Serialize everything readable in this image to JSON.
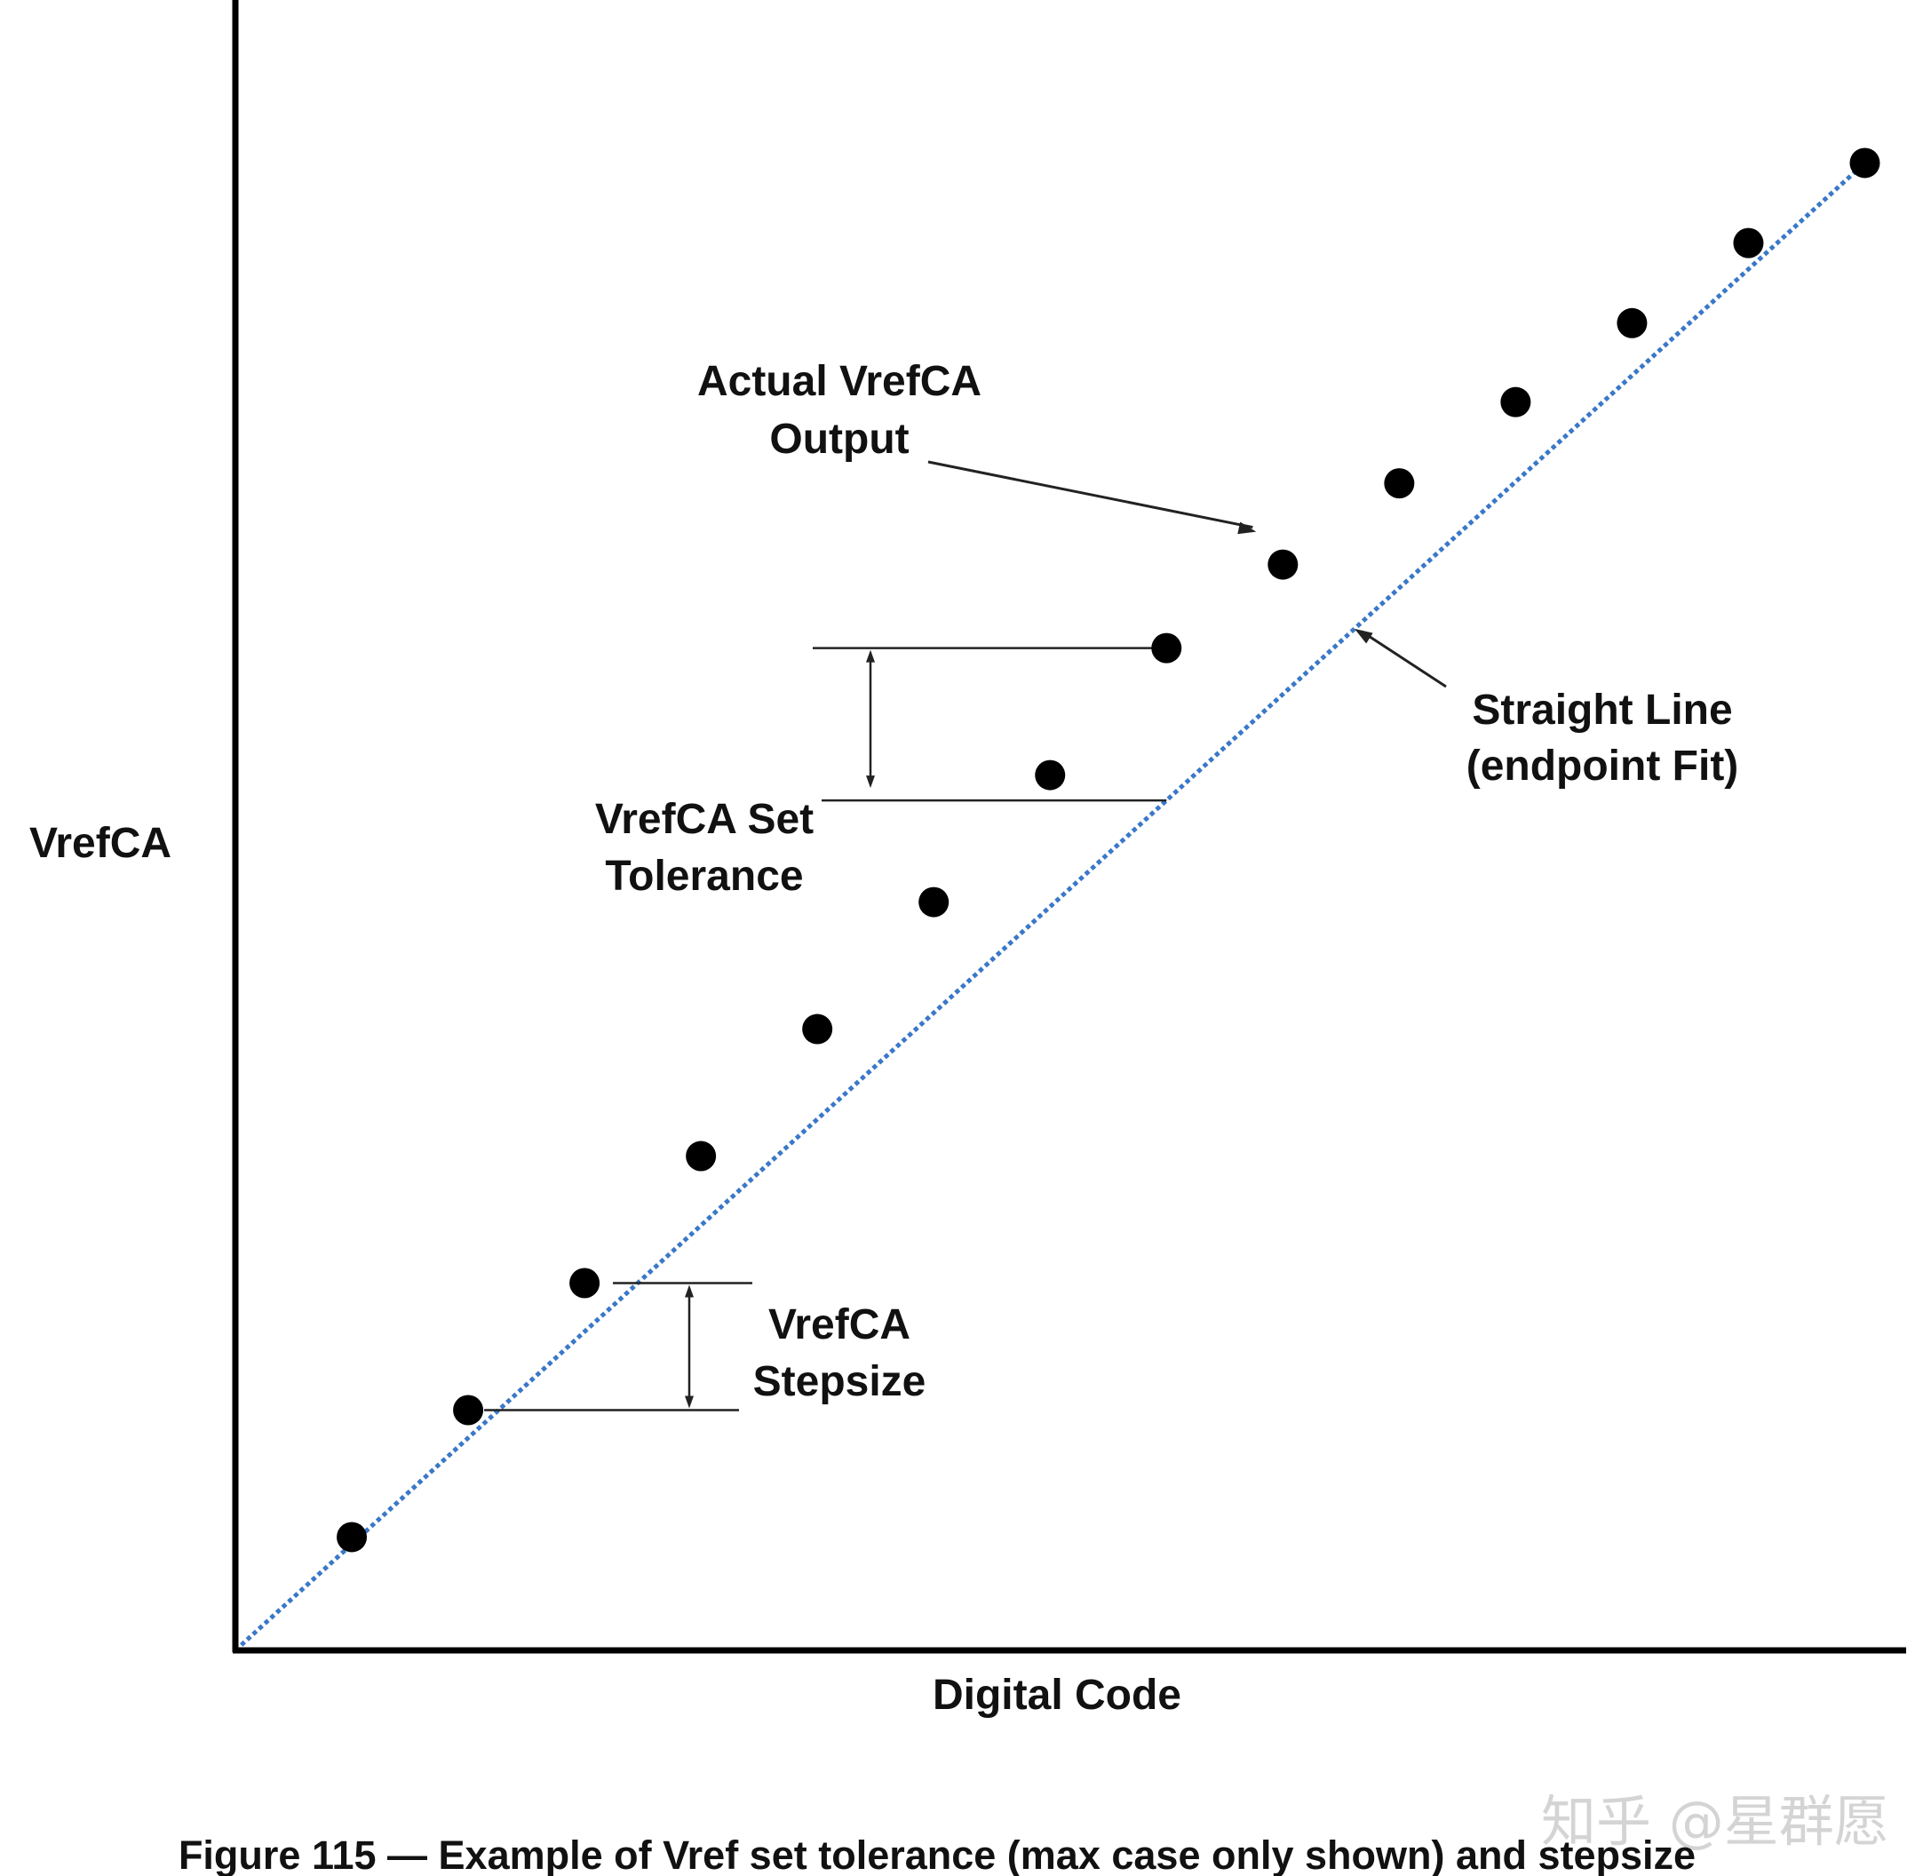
{
  "chart_data": {
    "type": "scatter",
    "xlabel": "Digital Code",
    "ylabel": "VrefCA",
    "caption": "Figure 115 — Example of Vref set tolerance (max case only shown) and stepsize",
    "axis_ticks": "none",
    "grid": false,
    "series": [
      {
        "name": "Actual VrefCA Output",
        "marker": "filled-circle",
        "color": "#000000",
        "x": [
          1,
          2,
          3,
          4,
          5,
          6,
          7,
          8,
          9,
          10,
          11,
          12,
          13,
          14
        ],
        "y": [
          0.99,
          2.1,
          3.21,
          4.32,
          5.43,
          6.54,
          7.65,
          8.76,
          9.49,
          10.2,
          10.91,
          11.6,
          12.3,
          13.0
        ]
      },
      {
        "name": "Straight Line (endpoint Fit)",
        "style": "dotted-line",
        "color": "#3a78c8",
        "x": [
          0,
          14
        ],
        "y": [
          0,
          13.0
        ]
      }
    ],
    "xlim": [
      0,
      14.5
    ],
    "ylim": [
      0,
      14.3
    ],
    "annotations": [
      {
        "id": "actual",
        "line1": "Actual VrefCA",
        "line2": "Output"
      },
      {
        "id": "straight",
        "line1": "Straight Line",
        "line2": "(endpoint Fit)"
      },
      {
        "id": "tolerance",
        "line1": "VrefCA Set",
        "line2": "Tolerance"
      },
      {
        "id": "stepsize",
        "line1": "VrefCA",
        "line2": "Stepsize"
      }
    ]
  },
  "watermark": "知乎 @星群愿"
}
